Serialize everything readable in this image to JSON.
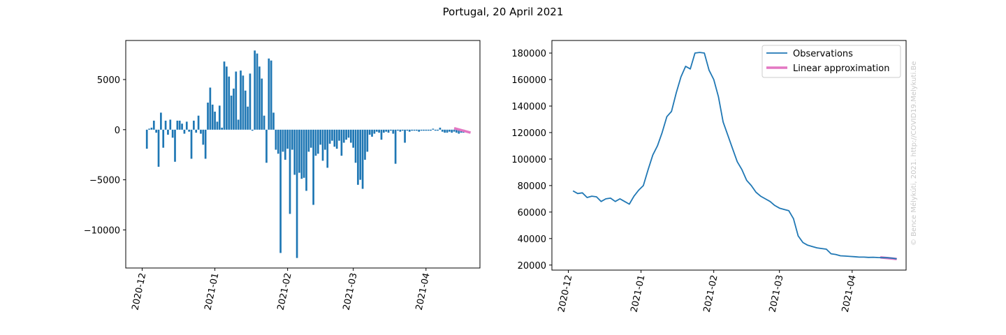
{
  "figure": {
    "title": "Portugal, 20 April 2021",
    "watermark": "© Bence Mélykúti, 2021. http://COVID19.Melykuti.Be"
  },
  "colors": {
    "bar": "#1f77b4",
    "line": "#1f77b4",
    "approx": "#e377c2",
    "axis": "#000000",
    "watermark": "#c8c8c8"
  },
  "chart_data": [
    {
      "type": "bar",
      "title": "",
      "xlabel": "",
      "ylabel": "",
      "x_start": "2020-12-03",
      "x_ticks": [
        "2020-12",
        "2021-01",
        "2021-02",
        "2021-03",
        "2021-04"
      ],
      "y_ticks": [
        5000,
        0,
        -5000,
        -10000
      ],
      "ylim": [
        -13800,
        8900
      ],
      "xlim": [
        "2020-11-24",
        "2021-04-24"
      ],
      "grid": false,
      "values": [
        -1900,
        100,
        200,
        900,
        -300,
        -3700,
        1700,
        -1800,
        900,
        -500,
        1000,
        -800,
        -3200,
        900,
        900,
        600,
        -400,
        800,
        -200,
        -2900,
        900,
        -300,
        1400,
        -400,
        -1500,
        -2900,
        2700,
        4200,
        2500,
        1800,
        800,
        2400,
        200,
        6800,
        6300,
        5300,
        3400,
        4100,
        5800,
        1000,
        5900,
        5400,
        3900,
        2300,
        5600,
        -100,
        7900,
        7600,
        6300,
        5100,
        1400,
        -3300,
        7100,
        6900,
        1700,
        -2000,
        -2400,
        -12300,
        -2200,
        -3000,
        -1900,
        -8400,
        -2000,
        -4500,
        -12800,
        -4300,
        -4900,
        -4800,
        -6100,
        -2200,
        -1800,
        -7500,
        -2600,
        -2400,
        -1500,
        -3100,
        -2000,
        -3800,
        -1400,
        -1100,
        -1700,
        -1900,
        -1100,
        -2600,
        -1300,
        -1000,
        -800,
        -1300,
        -1800,
        -3300,
        -5500,
        -5000,
        -5900,
        -3000,
        -2200,
        -500,
        -700,
        -400,
        -200,
        -300,
        -1000,
        -300,
        -200,
        -300,
        -100,
        -400,
        -3400,
        -100,
        -200,
        -100,
        -1300,
        -100,
        -200,
        -100,
        -100,
        -100,
        -200,
        -100,
        -100,
        -100,
        -100,
        -100,
        100,
        -100,
        -100,
        200,
        -200,
        -300,
        -300,
        -200,
        -300,
        -200,
        -300,
        -400,
        -300,
        -300
      ],
      "linear_approximation": {
        "x": [
          "2021-04-13",
          "2021-04-20"
        ],
        "y": [
          150,
          -300
        ]
      }
    },
    {
      "type": "line",
      "title": "",
      "xlabel": "",
      "ylabel": "",
      "x_ticks": [
        "2020-12",
        "2021-01",
        "2021-02",
        "2021-03",
        "2021-04"
      ],
      "y_ticks": [
        20000,
        40000,
        60000,
        80000,
        100000,
        120000,
        140000,
        160000,
        180000
      ],
      "ylim": [
        16200,
        189500
      ],
      "xlim": [
        "2020-11-24",
        "2021-04-24"
      ],
      "grid": false,
      "legend": "top-right",
      "series": [
        {
          "name": "Observations",
          "x": [
            "2020-12-03",
            "2020-12-05",
            "2020-12-07",
            "2020-12-09",
            "2020-12-11",
            "2020-12-13",
            "2020-12-15",
            "2020-12-17",
            "2020-12-19",
            "2020-12-21",
            "2020-12-23",
            "2020-12-25",
            "2020-12-27",
            "2020-12-29",
            "2020-12-31",
            "2021-01-02",
            "2021-01-04",
            "2021-01-06",
            "2021-01-08",
            "2021-01-10",
            "2021-01-12",
            "2021-01-14",
            "2021-01-16",
            "2021-01-18",
            "2021-01-20",
            "2021-01-22",
            "2021-01-24",
            "2021-01-26",
            "2021-01-28",
            "2021-01-30",
            "2021-02-01",
            "2021-02-03",
            "2021-02-05",
            "2021-02-07",
            "2021-02-09",
            "2021-02-11",
            "2021-02-13",
            "2021-02-15",
            "2021-02-17",
            "2021-02-19",
            "2021-02-21",
            "2021-02-23",
            "2021-02-25",
            "2021-02-27",
            "2021-03-01",
            "2021-03-03",
            "2021-03-05",
            "2021-03-07",
            "2021-03-09",
            "2021-03-11",
            "2021-03-13",
            "2021-03-15",
            "2021-03-17",
            "2021-03-19",
            "2021-03-21",
            "2021-03-23",
            "2021-03-25",
            "2021-03-27",
            "2021-03-29",
            "2021-03-31",
            "2021-04-02",
            "2021-04-04",
            "2021-04-06",
            "2021-04-08",
            "2021-04-10",
            "2021-04-12",
            "2021-04-14",
            "2021-04-16",
            "2021-04-18",
            "2021-04-20"
          ],
          "y": [
            76000,
            74000,
            74500,
            71000,
            72000,
            71500,
            68000,
            70000,
            70500,
            68000,
            70000,
            68000,
            66000,
            72000,
            76500,
            80000,
            92000,
            103000,
            110000,
            120000,
            132000,
            136000,
            150000,
            162000,
            170000,
            168000,
            180000,
            180500,
            180000,
            167000,
            160000,
            147000,
            128000,
            118000,
            108000,
            98000,
            92000,
            84000,
            80000,
            75000,
            72000,
            70000,
            68000,
            65000,
            63000,
            62000,
            61000,
            55000,
            42000,
            37000,
            35000,
            34000,
            33000,
            32500,
            32000,
            28500,
            28000,
            27000,
            26800,
            26500,
            26300,
            26000,
            26000,
            25800,
            25900,
            25700,
            25600,
            25500,
            25200,
            24700
          ]
        },
        {
          "name": "Linear approximation",
          "x": [
            "2021-04-13",
            "2021-04-20"
          ],
          "y": [
            25800,
            24600
          ]
        }
      ]
    }
  ]
}
